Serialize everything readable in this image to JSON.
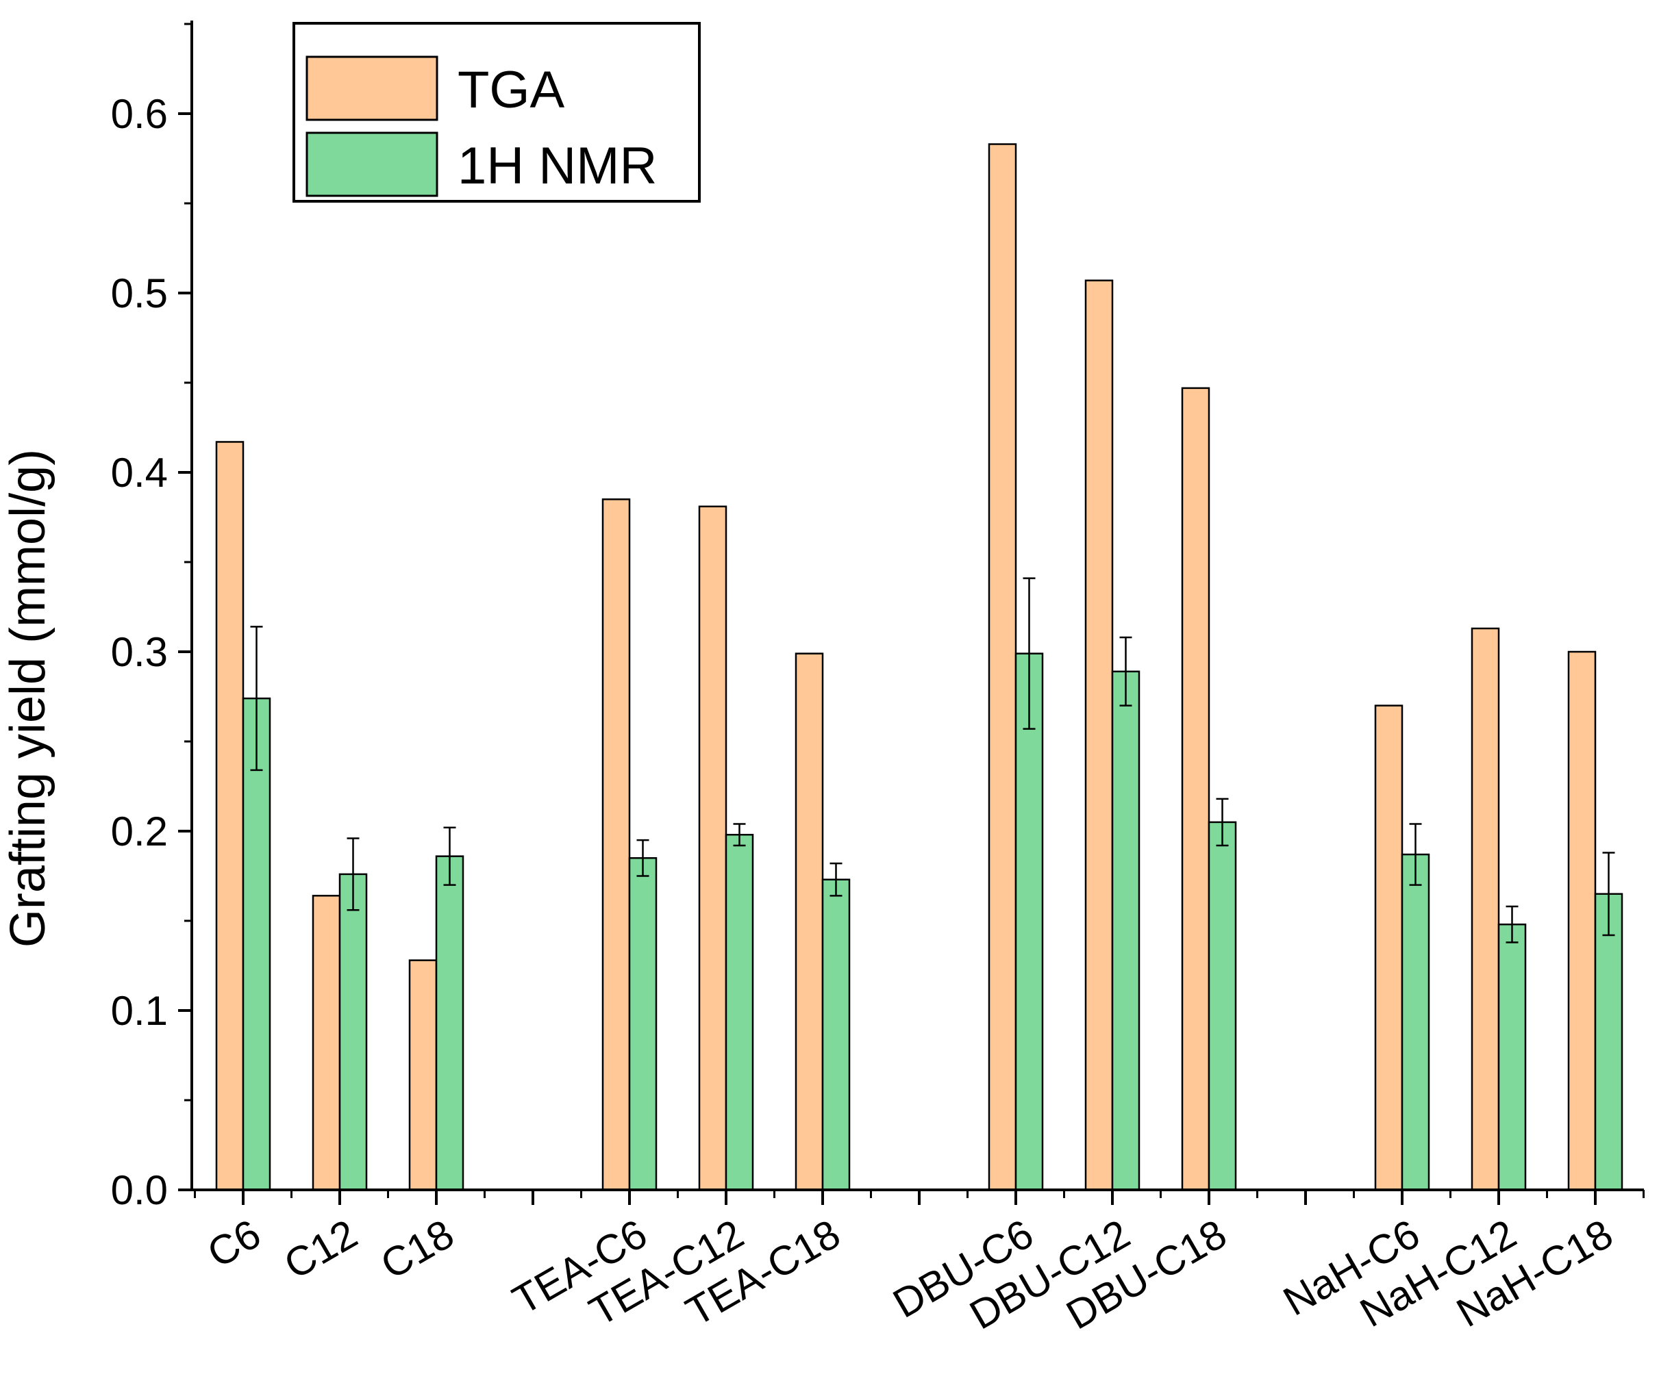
{
  "chart_data": {
    "type": "bar",
    "title": "",
    "xlabel": "",
    "ylabel": "Grafting yield (mmol/g)",
    "ylim": [
      0,
      0.65
    ],
    "yticks": [
      0.0,
      0.1,
      0.2,
      0.3,
      0.4,
      0.5,
      0.6
    ],
    "ytick_labels": [
      "0.0",
      "0.1",
      "0.2",
      "0.3",
      "0.4",
      "0.5",
      "0.6"
    ],
    "categories": [
      "C6",
      "C12",
      "C18",
      "TEA-C6",
      "TEA-C12",
      "TEA-C18",
      "DBU-C6",
      "DBU-C12",
      "DBU-C18",
      "NaH-C6",
      "NaH-C12",
      "NaH-C18"
    ],
    "series": [
      {
        "name": "TGA",
        "color": "#FFC896",
        "values": [
          0.417,
          0.164,
          0.128,
          0.385,
          0.381,
          0.299,
          0.583,
          0.507,
          0.447,
          0.27,
          0.313,
          0.3
        ]
      },
      {
        "name": "1H NMR",
        "color": "#7FD99A",
        "values": [
          0.274,
          0.176,
          0.186,
          0.185,
          0.198,
          0.173,
          0.299,
          0.289,
          0.205,
          0.187,
          0.148,
          0.165
        ],
        "errors": [
          0.04,
          0.02,
          0.016,
          0.01,
          0.006,
          0.009,
          0.042,
          0.019,
          0.013,
          0.017,
          0.01,
          0.023
        ]
      }
    ],
    "legend": {
      "position": "top-left",
      "entries": [
        "TGA",
        "1H NMR"
      ]
    }
  }
}
